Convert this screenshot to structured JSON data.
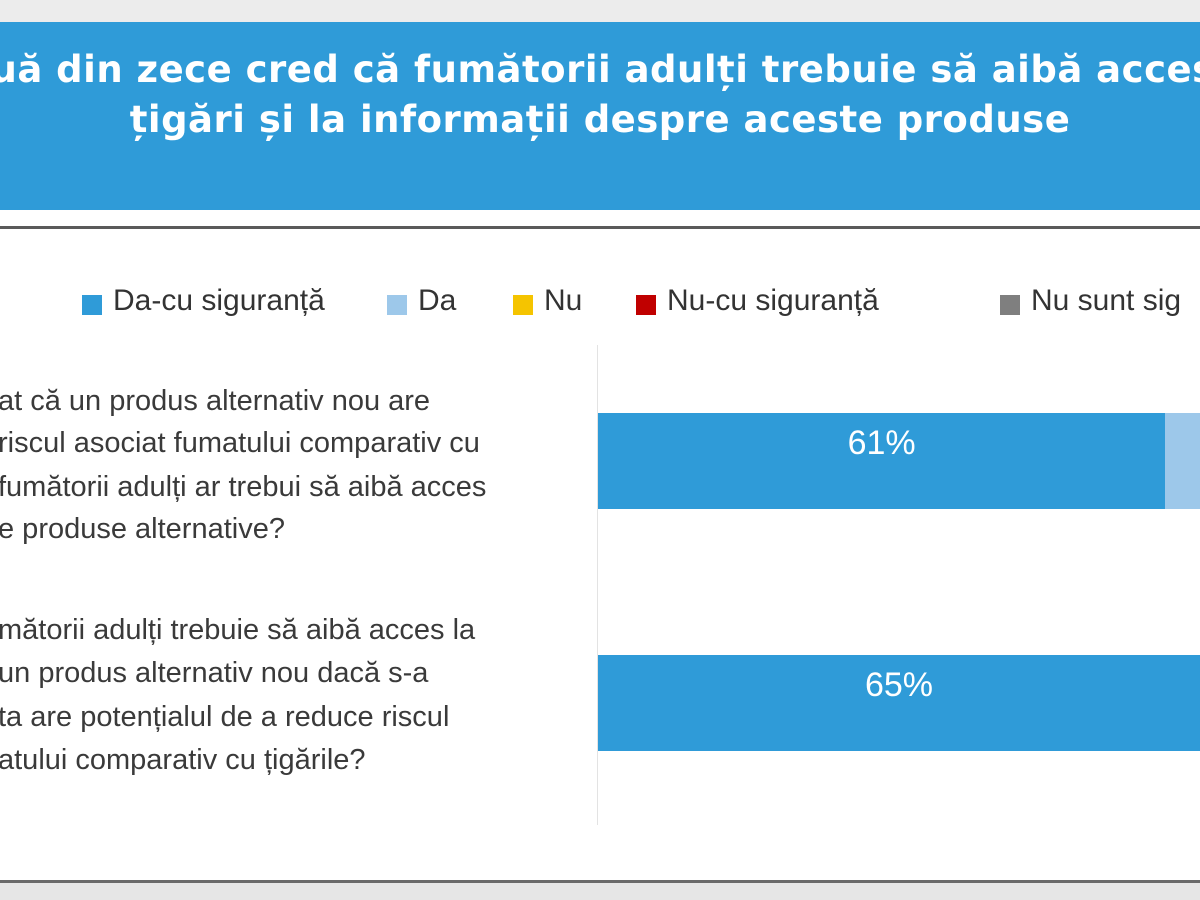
{
  "header": {
    "title_line1": "Două din zece cred că fumătorii adulți trebuie să aibă acces la",
    "title_line2": "țigări și la informații despre aceste produse"
  },
  "colors": {
    "header_bg": "#2f9bd8",
    "da_cu_siguranta": "#2f9bd8",
    "da": "#9dc8ea",
    "nu": "#f5c400",
    "nu_cu_siguranta": "#c00000",
    "nu_sunt_sigur": "#7f7f7f"
  },
  "chart_data": {
    "type": "bar",
    "orientation": "horizontal",
    "stacked": true,
    "legend_position": "top",
    "grid": false,
    "series": [
      {
        "name": "Da-cu siguranță",
        "color": "#2f9bd8"
      },
      {
        "name": "Da",
        "color": "#9dc8ea"
      },
      {
        "name": "Nu",
        "color": "#f5c400"
      },
      {
        "name": "Nu-cu siguranță",
        "color": "#c00000"
      },
      {
        "name": "Nu sunt sig",
        "color": "#7f7f7f"
      }
    ],
    "categories": [
      {
        "lines": [
          "at că un produs alternativ nou are",
          "riscul asociat fumatului comparativ cu",
          "fumătorii adulți ar trebui să aibă acces",
          "e produse alternative?"
        ],
        "values": [
          61
        ],
        "labels": [
          "61%"
        ]
      },
      {
        "lines": [
          "mătorii adulți trebuie să aibă acces la",
          "un produs alternativ nou dacă s-a",
          "ta are potențialul de a reduce riscul",
          "atului comparativ cu țigările?"
        ],
        "values": [
          65
        ],
        "labels": [
          "65%"
        ]
      }
    ]
  }
}
